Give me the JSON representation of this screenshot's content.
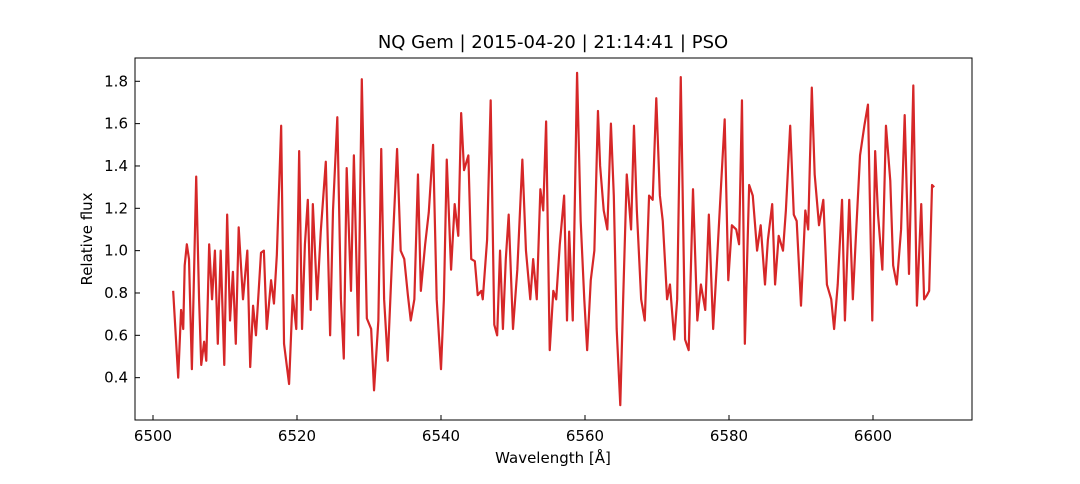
{
  "chart_data": {
    "type": "line",
    "title": "NQ Gem | 2015-04-20 | 21:14:41 | PSO",
    "x_label": "Wavelength [Å]",
    "y_label": "Relative flux",
    "color": "#d62728",
    "xlim": [
      6497.5,
      6613.75
    ],
    "ylim": [
      0.2,
      1.91
    ],
    "xticks": [
      6500,
      6520,
      6540,
      6560,
      6580,
      6600
    ],
    "yticks": [
      0.4,
      0.6,
      0.8,
      {
        "value": 1,
        "label": "1.0"
      },
      1.2,
      1.4,
      1.6,
      1.8
    ],
    "x": [
      6502.8,
      6503.5,
      6503.9,
      6504.2,
      6504.4,
      6504.7,
      6505.0,
      6505.4,
      6506.0,
      6506.4,
      6506.7,
      6507.1,
      6507.4,
      6507.8,
      6508.2,
      6508.6,
      6509.0,
      6509.4,
      6509.9,
      6510.3,
      6510.7,
      6511.1,
      6511.5,
      6511.9,
      6512.5,
      6513.1,
      6513.5,
      6513.9,
      6514.3,
      6515.0,
      6515.4,
      6515.8,
      6516.4,
      6516.8,
      6517.2,
      6517.8,
      6518.2,
      6518.9,
      6519.4,
      6519.9,
      6520.3,
      6520.7,
      6521.1,
      6521.5,
      6521.9,
      6522.2,
      6522.8,
      6523.3,
      6524.0,
      6524.6,
      6525.0,
      6525.6,
      6526.1,
      6526.5,
      6526.9,
      6527.5,
      6527.9,
      6528.5,
      6529.0,
      6529.7,
      6530.3,
      6530.7,
      6531.3,
      6531.7,
      6532.1,
      6532.6,
      6533.2,
      6533.9,
      6534.4,
      6534.9,
      6535.4,
      6535.8,
      6536.3,
      6536.8,
      6537.2,
      6537.8,
      6538.3,
      6538.9,
      6539.4,
      6540.0,
      6540.4,
      6540.8,
      6541.4,
      6541.9,
      6542.4,
      6542.8,
      6543.2,
      6543.8,
      6544.2,
      6544.7,
      6545.1,
      6545.6,
      6545.8,
      6546.4,
      6546.9,
      6547.4,
      6547.8,
      6548.2,
      6548.6,
      6549.0,
      6549.4,
      6550.0,
      6550.6,
      6551.3,
      6551.8,
      6552.4,
      6552.8,
      6553.3,
      6553.8,
      6554.2,
      6554.6,
      6555.1,
      6555.6,
      6556.0,
      6556.5,
      6557.1,
      6557.5,
      6557.8,
      6558.3,
      6558.9,
      6559.4,
      6559.9,
      6560.3,
      6560.8,
      6561.3,
      6561.8,
      6562.1,
      6562.6,
      6563.1,
      6563.6,
      6564.0,
      6564.4,
      6564.9,
      6565.3,
      6565.8,
      6566.4,
      6566.8,
      6567.2,
      6567.8,
      6568.3,
      6568.9,
      6569.4,
      6569.9,
      6570.4,
      6570.8,
      6571.4,
      6571.8,
      6572.4,
      6572.8,
      6573.3,
      6573.9,
      6574.4,
      6575.0,
      6575.6,
      6576.1,
      6576.7,
      6577.2,
      6577.8,
      6578.3,
      6578.9,
      6579.4,
      6579.9,
      6580.4,
      6581.0,
      6581.4,
      6581.8,
      6582.2,
      6582.8,
      6583.3,
      6583.9,
      6584.4,
      6585.0,
      6585.4,
      6586.0,
      6586.4,
      6586.9,
      6587.5,
      6587.9,
      6588.5,
      6589.0,
      6589.4,
      6590.0,
      6590.6,
      6591.0,
      6591.5,
      6591.9,
      6592.5,
      6593.1,
      6593.6,
      6594.2,
      6594.6,
      6595.1,
      6595.7,
      6596.1,
      6596.7,
      6597.2,
      6597.6,
      6598.2,
      6598.8,
      6599.3,
      6599.9,
      6600.3,
      6600.7,
      6601.3,
      6601.8,
      6602.4,
      6602.8,
      6603.3,
      6603.9,
      6604.4,
      6605.0,
      6605.6,
      6606.1,
      6606.7,
      6607.1,
      6607.5,
      6607.8,
      6608.2,
      6608.5
    ],
    "values": [
      0.81,
      0.4,
      0.72,
      0.63,
      0.93,
      1.03,
      0.96,
      0.44,
      1.35,
      0.77,
      0.46,
      0.57,
      0.48,
      1.03,
      0.77,
      1.0,
      0.56,
      1.0,
      0.46,
      1.17,
      0.67,
      0.9,
      0.56,
      1.11,
      0.77,
      1.0,
      0.45,
      0.74,
      0.6,
      0.99,
      1.0,
      0.63,
      0.86,
      0.75,
      0.98,
      1.59,
      0.56,
      0.37,
      0.79,
      0.63,
      1.47,
      0.63,
      1.03,
      1.24,
      0.72,
      1.22,
      0.77,
      1.09,
      1.42,
      0.6,
      1.19,
      1.63,
      0.77,
      0.49,
      1.39,
      0.81,
      1.45,
      0.6,
      1.81,
      0.68,
      0.63,
      0.34,
      0.67,
      1.48,
      0.77,
      0.48,
      0.96,
      1.48,
      1.0,
      0.96,
      0.79,
      0.67,
      0.77,
      1.36,
      0.81,
      1.03,
      1.18,
      1.5,
      0.77,
      0.44,
      0.77,
      1.43,
      0.91,
      1.22,
      1.07,
      1.65,
      1.38,
      1.45,
      0.96,
      0.95,
      0.79,
      0.81,
      0.77,
      1.05,
      1.71,
      0.65,
      0.6,
      1.0,
      0.63,
      0.96,
      1.17,
      0.63,
      0.91,
      1.43,
      1.0,
      0.77,
      0.96,
      0.77,
      1.29,
      1.19,
      1.61,
      0.53,
      0.81,
      0.77,
      1.03,
      1.26,
      0.67,
      1.09,
      0.67,
      1.84,
      1.14,
      0.77,
      0.53,
      0.86,
      1.0,
      1.66,
      1.4,
      1.19,
      1.1,
      1.6,
      1.26,
      0.63,
      0.27,
      0.77,
      1.36,
      1.1,
      1.59,
      1.19,
      0.77,
      0.67,
      1.26,
      1.24,
      1.72,
      1.26,
      1.14,
      0.77,
      0.84,
      0.58,
      0.77,
      1.82,
      0.58,
      0.53,
      1.29,
      0.67,
      0.84,
      0.72,
      1.17,
      0.63,
      0.93,
      1.31,
      1.62,
      0.86,
      1.12,
      1.1,
      1.03,
      1.71,
      0.56,
      1.31,
      1.26,
      1.0,
      1.12,
      0.84,
      1.05,
      1.22,
      0.84,
      1.07,
      1.0,
      1.19,
      1.59,
      1.17,
      1.14,
      0.74,
      1.19,
      1.1,
      1.77,
      1.36,
      1.12,
      1.24,
      0.84,
      0.77,
      0.63,
      0.84,
      1.24,
      0.67,
      1.24,
      0.77,
      1.05,
      1.45,
      1.59,
      1.69,
      0.67,
      1.47,
      1.17,
      0.91,
      1.59,
      1.33,
      0.93,
      0.84,
      1.1,
      1.64,
      0.89,
      1.78,
      0.74,
      1.22,
      0.77,
      0.79,
      0.81,
      1.31,
      1.3
    ]
  }
}
